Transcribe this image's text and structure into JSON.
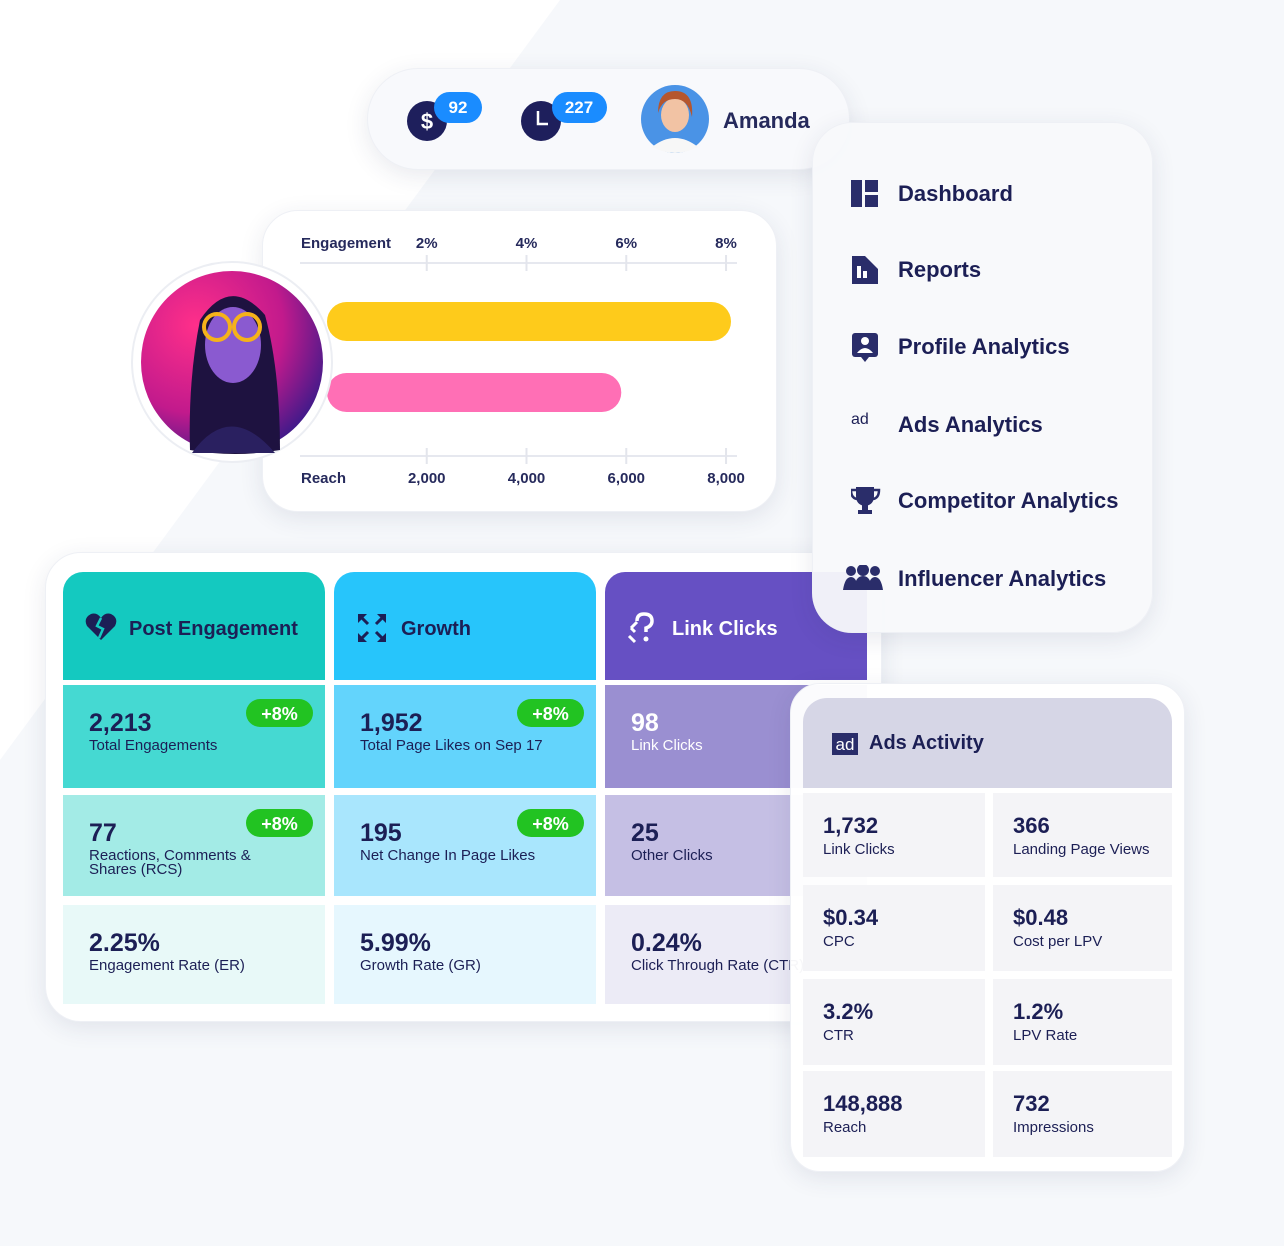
{
  "header": {
    "badges": [
      {
        "symbol": "$",
        "count": 92
      },
      {
        "count": 227
      }
    ],
    "user": "Amanda"
  },
  "menu": [
    "Dashboard",
    "Reports",
    "Profile Analytics",
    "Ads Analytics",
    "Competitor Analytics",
    "Influencer Analytics"
  ],
  "ad_icon": "ad",
  "chart_data": {
    "type": "bar",
    "engagement": {
      "label": "Engagement",
      "value": 8.1,
      "color": "#fecb1b",
      "xlim": [
        0,
        8.2
      ],
      "xticks": [
        {
          "value": 2,
          "label": "2%"
        },
        {
          "value": 4,
          "label": "4%"
        },
        {
          "value": 6,
          "label": "6%"
        },
        {
          "value": 8,
          "label": "8%"
        }
      ]
    },
    "reach": {
      "label": "Reach",
      "value": 5900,
      "color": "#ff6fb5",
      "xlim": [
        0,
        8200
      ],
      "xticks": [
        {
          "value": 2000,
          "label": "2,000"
        },
        {
          "value": 4000,
          "label": "4,000"
        },
        {
          "value": 6000,
          "label": "6,000"
        },
        {
          "value": 8000,
          "label": "8,000"
        }
      ]
    }
  },
  "metrics": [
    {
      "title": "Post Engagement",
      "cells": [
        {
          "value": "2,213",
          "label": "Total Engagements",
          "change": "+8%"
        },
        {
          "value": "77",
          "label": "Reactions, Comments & Shares (RCS)",
          "change": "+8%"
        },
        {
          "value": "2.25%",
          "label": "Engagement Rate (ER)"
        }
      ]
    },
    {
      "title": "Growth",
      "cells": [
        {
          "value": "1,952",
          "label": "Total Page Likes on Sep 17",
          "change": "+8%"
        },
        {
          "value": "195",
          "label": "Net Change In Page Likes",
          "change": "+8%"
        },
        {
          "value": "5.99%",
          "label": "Growth Rate (GR)"
        }
      ]
    },
    {
      "title": "Link Clicks",
      "cells": [
        {
          "value": "98",
          "label": "Link Clicks"
        },
        {
          "value": "25",
          "label": "Other Clicks"
        },
        {
          "value": "0.24%",
          "label": "Click Through Rate (CTR)"
        }
      ]
    }
  ],
  "ads_activity": {
    "title": "Ads Activity",
    "cells": [
      {
        "value": "1,732",
        "label": "Link Clicks"
      },
      {
        "value": "366",
        "label": "Landing Page Views"
      },
      {
        "value": "$0.34",
        "label": "CPC"
      },
      {
        "value": "$0.48",
        "label": "Cost per LPV"
      },
      {
        "value": "3.2%",
        "label": "CTR"
      },
      {
        "value": "1.2%",
        "label": "LPV Rate"
      },
      {
        "value": "148,888",
        "label": "Reach"
      },
      {
        "value": "732",
        "label": "Impressions"
      }
    ]
  }
}
